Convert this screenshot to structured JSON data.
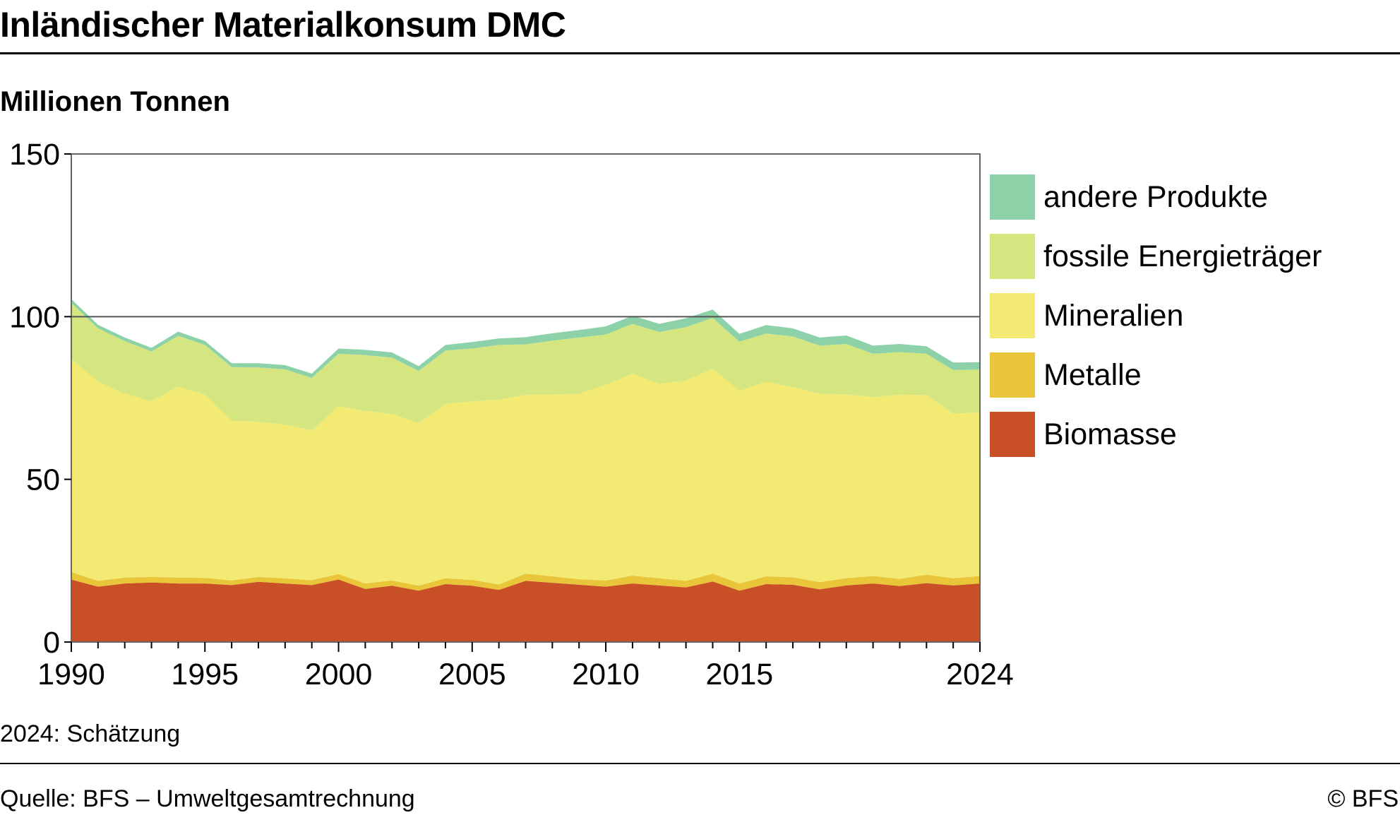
{
  "title": "Inländischer Materialkonsum DMC",
  "subtitle": "Millionen Tonnen",
  "note": "2024: Schätzung",
  "source": "Quelle: BFS – Umweltgesamtrechnung",
  "copyright": "© BFS",
  "colors": {
    "Biomasse": "#c94f26",
    "Metalle": "#e9c53a",
    "Mineralien": "#f2ea73",
    "fossile Energieträger": "#d5e681",
    "andere Produkte": "#8dd1a8"
  },
  "legend": [
    {
      "label": "andere Produkte",
      "color": "#8dd1a8"
    },
    {
      "label": "fossile Energieträger",
      "color": "#d5e681"
    },
    {
      "label": "Mineralien",
      "color": "#f2ea73"
    },
    {
      "label": "Metalle",
      "color": "#e9c53a"
    },
    {
      "label": "Biomasse",
      "color": "#c94f26"
    }
  ],
  "chart_data": {
    "type": "area",
    "stacked": true,
    "title": "Inländischer Materialkonsum DMC",
    "ylabel": "Millionen Tonnen",
    "xlim": [
      1990,
      2024
    ],
    "ylim": [
      0,
      150
    ],
    "yticks": [
      0,
      50,
      100,
      150
    ],
    "xtick_labels": [
      "1990",
      "1995",
      "2000",
      "2005",
      "2010",
      "2015",
      "2024"
    ],
    "grid": "horizontal at 100",
    "legend_position": "right",
    "x": [
      1990,
      1991,
      1992,
      1993,
      1994,
      1995,
      1996,
      1997,
      1998,
      1999,
      2000,
      2001,
      2002,
      2003,
      2004,
      2005,
      2006,
      2007,
      2008,
      2009,
      2010,
      2011,
      2012,
      2013,
      2014,
      2015,
      2016,
      2017,
      2018,
      2019,
      2020,
      2021,
      2022,
      2023,
      2024
    ],
    "series": [
      {
        "name": "Biomasse",
        "values": [
          19.2,
          17.0,
          18.0,
          18.3,
          18.0,
          18.0,
          17.5,
          18.5,
          18.0,
          17.5,
          19.2,
          16.3,
          17.3,
          15.8,
          17.8,
          17.3,
          16.0,
          18.8,
          18.2,
          17.6,
          17.0,
          18.0,
          17.4,
          16.8,
          18.6,
          15.8,
          17.8,
          17.6,
          16.2,
          17.4,
          18.0,
          17.2,
          18.1,
          17.4,
          18.0
        ]
      },
      {
        "name": "Metalle",
        "values": [
          2.3,
          1.8,
          1.8,
          1.7,
          1.8,
          1.7,
          1.4,
          1.5,
          1.6,
          1.5,
          1.7,
          1.7,
          1.6,
          1.5,
          1.8,
          1.8,
          1.7,
          2.2,
          2.0,
          1.7,
          1.9,
          2.4,
          2.2,
          2.0,
          2.4,
          2.2,
          2.4,
          2.3,
          2.2,
          2.2,
          2.3,
          2.2,
          2.6,
          2.2,
          2.3
        ]
      },
      {
        "name": "Mineralien",
        "values": [
          65.5,
          61.2,
          56.5,
          54.0,
          58.7,
          56.3,
          49.1,
          47.7,
          47.2,
          46.0,
          51.6,
          53.0,
          51.2,
          50.0,
          53.6,
          54.9,
          56.8,
          55.0,
          55.8,
          57.0,
          60.1,
          62.1,
          59.7,
          61.6,
          63.0,
          59.2,
          59.8,
          58.4,
          57.9,
          56.5,
          55.0,
          56.6,
          55.2,
          50.6,
          50.2
        ]
      },
      {
        "name": "fossile Energieträger",
        "values": [
          17.2,
          16.4,
          16.2,
          15.3,
          15.6,
          15.3,
          16.5,
          16.7,
          17.0,
          16.2,
          16.1,
          17.2,
          17.3,
          16.0,
          16.4,
          16.2,
          16.8,
          15.5,
          16.6,
          17.3,
          15.5,
          15.3,
          16.0,
          16.4,
          15.6,
          15.1,
          14.8,
          15.6,
          14.8,
          15.5,
          13.3,
          13.1,
          12.7,
          13.4,
          13.2
        ]
      },
      {
        "name": "andere Produkte",
        "values": [
          1.2,
          1.1,
          1.1,
          1.1,
          1.3,
          1.2,
          1.2,
          1.3,
          1.3,
          1.3,
          1.6,
          1.6,
          1.6,
          1.5,
          1.7,
          2.0,
          2.0,
          2.2,
          2.3,
          2.3,
          2.5,
          2.5,
          2.5,
          2.7,
          2.6,
          2.4,
          2.6,
          2.5,
          2.5,
          2.6,
          2.5,
          2.5,
          2.3,
          2.3,
          2.3
        ]
      }
    ]
  }
}
